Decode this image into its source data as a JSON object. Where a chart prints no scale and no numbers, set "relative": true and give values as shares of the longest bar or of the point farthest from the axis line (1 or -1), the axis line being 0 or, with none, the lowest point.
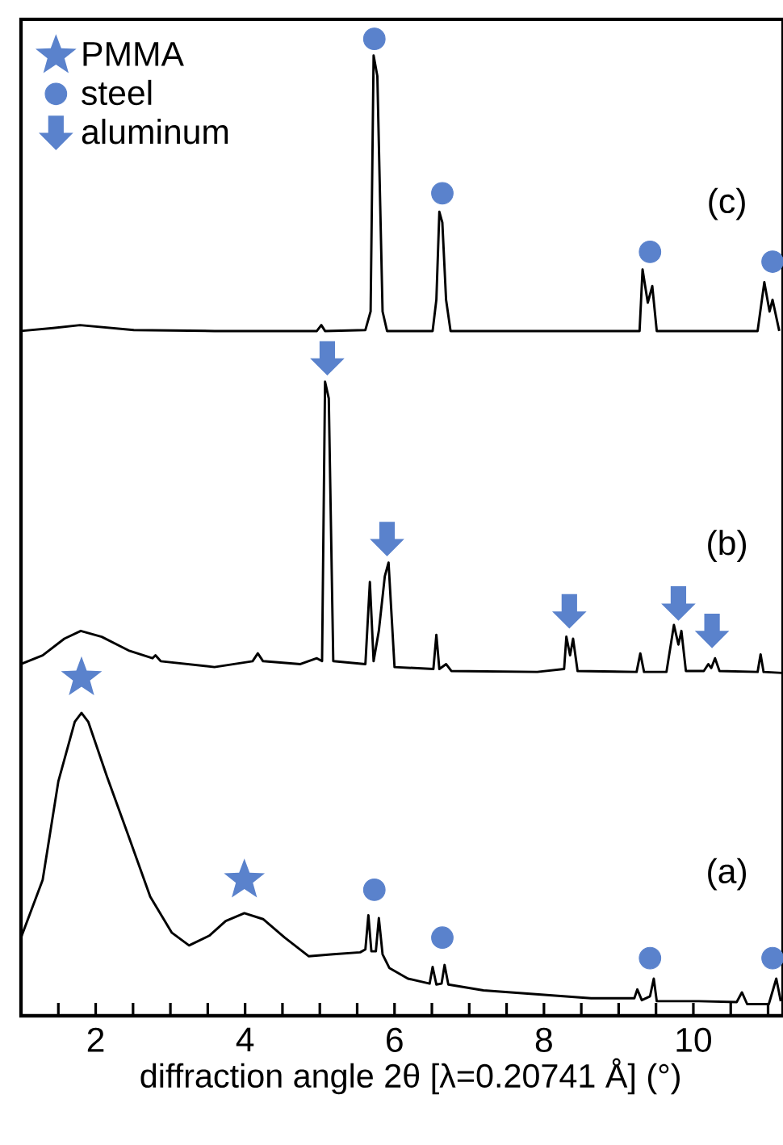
{
  "chart_data": {
    "type": "line",
    "relative": true,
    "tick_labels": "x",
    "grid": false,
    "legend": "top left",
    "xlabel": "diffraction angle 2θ [λ=0.20741 Å] (°)",
    "annotations": [
      "(a)",
      "(b)",
      "(c)"
    ],
    "xlim": [
      1,
      11.2
    ],
    "xticks": [
      {
        "value": 1.5,
        "label": null
      },
      2,
      {
        "value": 2.5,
        "label": null
      },
      {
        "value": 3,
        "label": null
      },
      {
        "value": 3.5,
        "label": null
      },
      4,
      {
        "value": 4.5,
        "label": null
      },
      {
        "value": 5,
        "label": null
      },
      {
        "value": 5.5,
        "label": null
      },
      6,
      {
        "value": 6.5,
        "label": null
      },
      {
        "value": 7,
        "label": null
      },
      {
        "value": 7.5,
        "label": null
      },
      8,
      {
        "value": 8.5,
        "label": null
      },
      {
        "value": 9,
        "label": null
      },
      {
        "value": 9.5,
        "label": null
      },
      10,
      {
        "value": 10.5,
        "label": null
      },
      {
        "value": 11,
        "label": null
      }
    ],
    "series": [
      {
        "color": "#000000",
        "x": [
          1.0,
          1.29,
          1.5,
          1.72,
          1.81,
          1.9,
          2.15,
          2.44,
          2.73,
          3.02,
          3.25,
          3.52,
          3.74,
          3.99,
          4.24,
          4.53,
          4.85,
          5.18,
          5.54,
          5.61,
          5.65,
          5.69,
          5.75,
          5.79,
          5.84,
          5.93,
          6.18,
          6.47,
          6.51,
          6.56,
          6.63,
          6.67,
          6.72,
          7.19,
          7.91,
          8.63,
          9.21,
          9.25,
          9.31,
          9.42,
          9.47,
          9.51,
          10.07,
          10.58,
          10.65,
          10.72,
          11.01,
          11.11,
          11.17
        ],
        "values": [
          0.08,
          0.139,
          0.24,
          0.301,
          0.31,
          0.301,
          0.245,
          0.184,
          0.122,
          0.085,
          0.072,
          0.082,
          0.097,
          0.105,
          0.099,
          0.08,
          0.061,
          0.063,
          0.065,
          0.068,
          0.103,
          0.066,
          0.066,
          0.1,
          0.063,
          0.049,
          0.038,
          0.033,
          0.05,
          0.032,
          0.033,
          0.052,
          0.032,
          0.026,
          0.022,
          0.018,
          0.018,
          0.027,
          0.016,
          0.02,
          0.038,
          0.015,
          0.015,
          0.014,
          0.024,
          0.012,
          0.012,
          0.038,
          0.015
        ]
      },
      {
        "color": "#000000",
        "x": [
          1.0,
          1.29,
          1.58,
          1.8,
          2.08,
          2.44,
          2.76,
          2.8,
          2.87,
          3.59,
          4.1,
          4.17,
          4.24,
          4.74,
          4.96,
          5.03,
          5.07,
          5.12,
          5.18,
          5.61,
          5.67,
          5.72,
          5.79,
          5.87,
          5.92,
          6.0,
          6.26,
          6.52,
          6.56,
          6.6,
          6.69,
          6.76,
          7.91,
          8.27,
          8.3,
          8.35,
          8.39,
          8.45,
          9.24,
          9.29,
          9.34,
          9.64,
          9.74,
          9.8,
          9.84,
          9.9,
          10.14,
          10.2,
          10.24,
          10.29,
          10.35,
          10.86,
          10.9,
          10.94,
          11.19
        ],
        "values": [
          0.36,
          0.369,
          0.386,
          0.394,
          0.388,
          0.374,
          0.366,
          0.369,
          0.363,
          0.357,
          0.363,
          0.371,
          0.363,
          0.36,
          0.366,
          0.363,
          0.649,
          0.632,
          0.363,
          0.36,
          0.444,
          0.363,
          0.394,
          0.45,
          0.464,
          0.357,
          0.356,
          0.355,
          0.39,
          0.355,
          0.36,
          0.353,
          0.352,
          0.355,
          0.388,
          0.369,
          0.386,
          0.353,
          0.352,
          0.371,
          0.352,
          0.352,
          0.4,
          0.38,
          0.394,
          0.353,
          0.353,
          0.36,
          0.356,
          0.366,
          0.353,
          0.352,
          0.37,
          0.352,
          0.351
        ]
      },
      {
        "color": "#000000",
        "x": [
          1.0,
          1.43,
          1.79,
          2.51,
          3.59,
          4.96,
          5.02,
          5.07,
          5.61,
          5.68,
          5.72,
          5.77,
          5.84,
          5.9,
          6.51,
          6.56,
          6.6,
          6.64,
          6.69,
          6.75,
          9.28,
          9.32,
          9.39,
          9.45,
          9.51,
          10.86,
          10.95,
          11.02,
          11.06,
          11.15
        ],
        "values": [
          0.701,
          0.704,
          0.707,
          0.702,
          0.701,
          0.701,
          0.707,
          0.701,
          0.702,
          0.721,
          0.983,
          0.962,
          0.721,
          0.701,
          0.701,
          0.733,
          0.823,
          0.812,
          0.733,
          0.701,
          0.701,
          0.764,
          0.73,
          0.747,
          0.701,
          0.701,
          0.751,
          0.721,
          0.733,
          0.701
        ]
      },
      {
        "name": "PMMA",
        "type": "scatter",
        "marker": "star",
        "color": "#5a82cc",
        "x": [
          1.81,
          3.99
        ],
        "values": [
          0.346,
          0.139
        ]
      },
      {
        "name": "steel",
        "type": "scatter",
        "marker": "circle",
        "color": "#5a82cc",
        "x": [
          5.73,
          6.64,
          9.42,
          11.06,
          5.73,
          6.64,
          9.42,
          11.06
        ],
        "values": [
          0.129,
          0.08,
          0.059,
          0.059,
          1.0,
          0.842,
          0.782,
          0.772
        ]
      },
      {
        "name": "aluminum",
        "type": "scatter",
        "marker": "triangle",
        "color": "#5a82cc",
        "x": [
          5.1,
          5.9,
          8.34,
          9.8,
          10.25
        ],
        "values": [
          0.673,
          0.488,
          0.414,
          0.422,
          0.394
        ]
      }
    ]
  }
}
